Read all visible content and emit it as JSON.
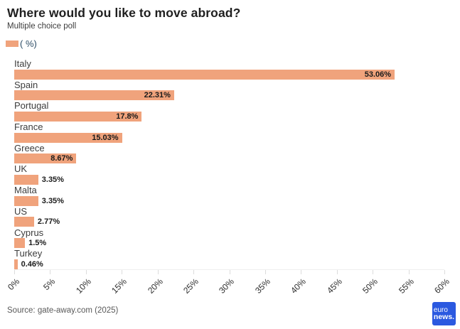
{
  "header": {
    "title": "Where would you like to move abroad?",
    "subtitle": "Multiple choice poll"
  },
  "legend": {
    "label": "( %)",
    "swatch_color": "#f0a37c"
  },
  "chart_data": {
    "type": "bar",
    "orientation": "horizontal",
    "title": "Where would you like to move abroad?",
    "subtitle": "Multiple choice poll",
    "categories": [
      "Italy",
      "Spain",
      "Portugal",
      "France",
      "Greece",
      "UK",
      "Malta",
      "US",
      "Cyprus",
      "Turkey"
    ],
    "values": [
      53.06,
      22.31,
      17.8,
      15.03,
      8.67,
      3.35,
      3.35,
      2.77,
      1.5,
      0.46
    ],
    "value_labels": [
      "53.06%",
      "22.31%",
      "17.8%",
      "15.03%",
      "8.67%",
      "3.35%",
      "3.35%",
      "2.77%",
      "1.5%",
      "0.46%"
    ],
    "xlabel": "",
    "ylabel": "",
    "xlim": [
      0,
      60
    ],
    "x_ticks": [
      "0%",
      "5%",
      "10%",
      "15%",
      "20%",
      "25%",
      "30%",
      "35%",
      "40%",
      "45%",
      "50%",
      "55%",
      "60%"
    ],
    "bar_color": "#f0a37c",
    "grid": false,
    "legend_position": "top-left",
    "legend_entries": [
      "( %)"
    ]
  },
  "footer": {
    "source": "Source: gate-away.com (2025)",
    "logo_line1": "euro",
    "logo_line2": "news.",
    "logo_color": "#2b59e0"
  }
}
